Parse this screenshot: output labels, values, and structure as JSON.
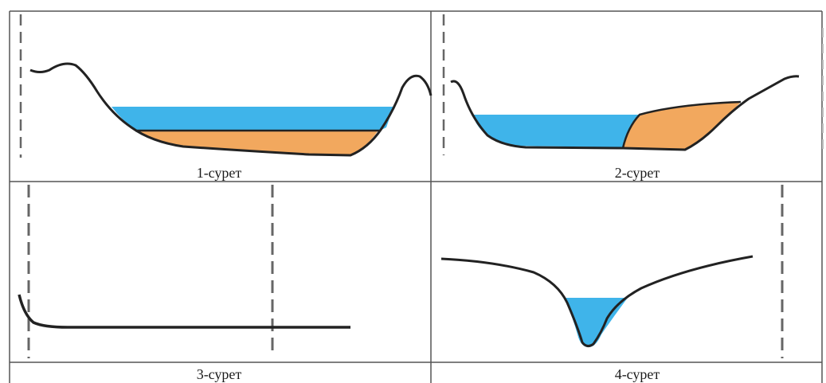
{
  "figures": [
    {
      "caption": "1-сурет"
    },
    {
      "caption": "2-сурет"
    },
    {
      "caption": "3-сурет"
    },
    {
      "caption": "4-сурет"
    }
  ],
  "colors": {
    "water": "#3fb4ea",
    "sediment": "#f2a85e",
    "ground_line": "#222222",
    "grid_line": "#555555",
    "dashed_line": "#666666"
  }
}
